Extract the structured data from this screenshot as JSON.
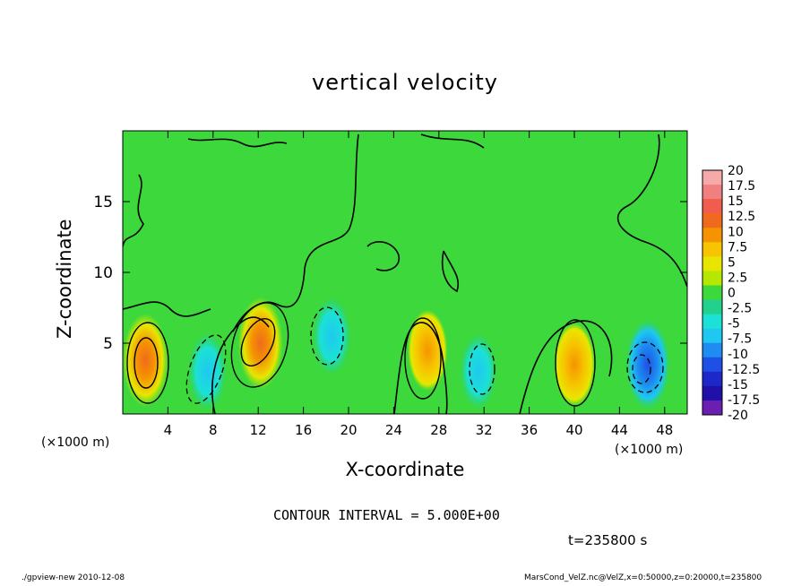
{
  "chart_data": {
    "type": "heatmap",
    "title": "vertical velocity",
    "xlabel": "X-coordinate",
    "ylabel": "Z-coordinate",
    "x_unit_label": "(×1000 m)",
    "x_ticks": [
      4,
      8,
      12,
      16,
      20,
      24,
      28,
      32,
      36,
      40,
      44,
      48
    ],
    "y_ticks": [
      5,
      10,
      15
    ],
    "xlim": [
      0,
      50
    ],
    "ylim": [
      0,
      20
    ],
    "contour_interval_label": "CONTOUR INTERVAL = 5.000E+00",
    "colorbar": {
      "labels": [
        "20",
        "17.5",
        "15",
        "12.5",
        "10",
        "7.5",
        "5",
        "2.5",
        "0",
        "-2.5",
        "-5",
        "-7.5",
        "-10",
        "-12.5",
        "-15",
        "-17.5",
        "-20"
      ],
      "colors": [
        "#f5a9a9",
        "#f08080",
        "#f25c4c",
        "#f06a1e",
        "#f59400",
        "#f7c400",
        "#e8e600",
        "#b4e800",
        "#3cd83c",
        "#22d28c",
        "#1ce1d6",
        "#1ec8f0",
        "#1e8cf0",
        "#1e50e8",
        "#1e28c8",
        "#2010a8",
        "#6a1fb0"
      ]
    },
    "cells": [
      {
        "x": 2.0,
        "z": 3.8,
        "value": 12.5
      },
      {
        "x": 7.5,
        "z": 3.0,
        "value": -6
      },
      {
        "x": 12.2,
        "z": 5.0,
        "value": 12
      },
      {
        "x": 18.5,
        "z": 5.5,
        "value": -6
      },
      {
        "x": 27.0,
        "z": 4.5,
        "value": 7
      },
      {
        "x": 31.5,
        "z": 3.0,
        "value": -5
      },
      {
        "x": 40.0,
        "z": 3.5,
        "value": 8
      },
      {
        "x": 46.5,
        "z": 3.5,
        "value": -11
      }
    ]
  },
  "time_label": "t=235800 s",
  "footer": {
    "left": "./gpview-new   2010-12-08",
    "right": "MarsCond_VelZ.nc@VelZ,x=0:50000,z=0:20000,t=235800"
  }
}
